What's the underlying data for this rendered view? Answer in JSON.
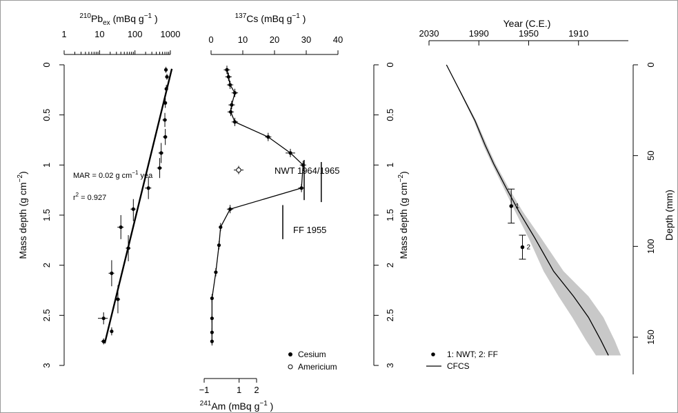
{
  "chart_data": [
    {
      "type": "scatter",
      "panel": "Pb210",
      "title_html": {
        "sup": "210",
        "main": "Pb",
        "sub": "ex",
        "unit": " (mBq  g",
        "unit_sup": "−1",
        "unit_end": " )"
      },
      "xscale": "log",
      "xlim": [
        1,
        1000
      ],
      "x_tick_labels": [
        "1",
        "10",
        "100",
        "1000"
      ],
      "x_tick_values": [
        1,
        10,
        100,
        1000
      ],
      "ylabel": "Mass depth (g cm",
      "ylabel_sup": "−2",
      "ylabel_end": ")",
      "ylim": [
        0,
        3
      ],
      "y_tick_labels": [
        "0",
        "0.5",
        "1",
        "1.5",
        "2",
        "2.5",
        "3"
      ],
      "y_tick_values": [
        0,
        0.5,
        1,
        1.5,
        2,
        2.5,
        3
      ],
      "points": [
        {
          "x": 750,
          "y": 0.05,
          "xerr": [
            700,
            800
          ],
          "yerr": [
            0.02,
            0.08
          ]
        },
        {
          "x": 800,
          "y": 0.12,
          "xerr": [
            740,
            860
          ],
          "yerr": [
            0.09,
            0.15
          ]
        },
        {
          "x": 770,
          "y": 0.24,
          "xerr": [
            700,
            850
          ],
          "yerr": [
            0.2,
            0.28
          ]
        },
        {
          "x": 720,
          "y": 0.38,
          "xerr": [
            650,
            800
          ],
          "yerr": [
            0.33,
            0.43
          ]
        },
        {
          "x": 700,
          "y": 0.55,
          "xerr": [
            600,
            800
          ],
          "yerr": [
            0.48,
            0.62
          ]
        },
        {
          "x": 720,
          "y": 0.72,
          "xerr": [
            620,
            820
          ],
          "yerr": [
            0.64,
            0.8
          ]
        },
        {
          "x": 550,
          "y": 0.88,
          "xerr": [
            460,
            640
          ],
          "yerr": [
            0.78,
            0.98
          ]
        },
        {
          "x": 500,
          "y": 1.03,
          "xerr": [
            420,
            580
          ],
          "yerr": [
            0.93,
            1.13
          ]
        },
        {
          "x": 240,
          "y": 1.23,
          "xerr": [
            190,
            290
          ],
          "yerr": [
            1.12,
            1.34
          ]
        },
        {
          "x": 90,
          "y": 1.44,
          "xerr": [
            75,
            105
          ],
          "yerr": [
            1.34,
            1.56
          ]
        },
        {
          "x": 40,
          "y": 1.62,
          "xerr": [
            32,
            48
          ],
          "yerr": [
            1.5,
            1.74
          ]
        },
        {
          "x": 65,
          "y": 1.83,
          "xerr": [
            55,
            75
          ],
          "yerr": [
            1.7,
            1.96
          ]
        },
        {
          "x": 22,
          "y": 2.08,
          "xerr": [
            18,
            26
          ],
          "yerr": [
            1.95,
            2.21
          ]
        },
        {
          "x": 33,
          "y": 2.34,
          "xerr": [
            28,
            38
          ],
          "yerr": [
            2.2,
            2.48
          ]
        },
        {
          "x": 13,
          "y": 2.53,
          "xerr": [
            9,
            17
          ],
          "yerr": [
            2.47,
            2.59
          ]
        },
        {
          "x": 22,
          "y": 2.66,
          "xerr": [
            20,
            24
          ],
          "yerr": [
            2.62,
            2.7
          ]
        },
        {
          "x": 13,
          "y": 2.76,
          "xerr": [
            11,
            15
          ],
          "yerr": [
            2.73,
            2.79
          ]
        }
      ],
      "fit_line": {
        "x": [
          1100,
          14
        ],
        "y": [
          0.04,
          2.78
        ]
      },
      "annotations": {
        "mar": "MAR = 0.02 g cm",
        "mar_sup": "−1",
        "mar_end": " yea",
        "r2": "r",
        "r2_sup": "2",
        "r2_end": " = 0.927"
      }
    },
    {
      "type": "line",
      "panel": "Cs137",
      "title_html": {
        "sup": "137",
        "main": "Cs",
        "unit": " (mBq  g",
        "unit_sup": "−1",
        "unit_end": " )"
      },
      "xlim": [
        0,
        40
      ],
      "x_tick_labels": [
        "0",
        "10",
        "20",
        "30",
        "40"
      ],
      "x_tick_values": [
        0,
        10,
        20,
        30,
        40
      ],
      "ylim": [
        0,
        3
      ],
      "series": [
        {
          "name": "Cesium",
          "points": [
            {
              "x": 5,
              "y": 0.05,
              "xerr": [
                4,
                6
              ]
            },
            {
              "x": 5.5,
              "y": 0.12,
              "xerr": [
                4.5,
                6.5
              ]
            },
            {
              "x": 6,
              "y": 0.2,
              "xerr": [
                5,
                7
              ]
            },
            {
              "x": 7.5,
              "y": 0.28,
              "xerr": [
                6.5,
                8.5
              ]
            },
            {
              "x": 6.5,
              "y": 0.4,
              "xerr": [
                5.5,
                7.5
              ]
            },
            {
              "x": 6.2,
              "y": 0.47,
              "xerr": [
                5.2,
                7.2
              ]
            },
            {
              "x": 7.5,
              "y": 0.57,
              "xerr": [
                6.5,
                8.5
              ]
            },
            {
              "x": 18,
              "y": 0.72,
              "xerr": [
                17,
                19
              ]
            },
            {
              "x": 25,
              "y": 0.88,
              "xerr": [
                23.5,
                26.5
              ]
            },
            {
              "x": 29,
              "y": 1.0,
              "xerr": [
                28,
                30
              ]
            },
            {
              "x": 28.5,
              "y": 1.23,
              "xerr": [
                27.5,
                29.5
              ]
            },
            {
              "x": 6,
              "y": 1.44,
              "xerr": [
                5,
                7
              ]
            },
            {
              "x": 3,
              "y": 1.62,
              "xerr": [
                2.5,
                3.5
              ]
            },
            {
              "x": 2.5,
              "y": 1.8,
              "xerr": [
                2,
                3
              ]
            },
            {
              "x": 1.5,
              "y": 2.07,
              "xerr": [
                1,
                2
              ]
            },
            {
              "x": 0.3,
              "y": 2.33
            },
            {
              "x": 0.3,
              "y": 2.53
            },
            {
              "x": 0.3,
              "y": 2.67
            },
            {
              "x": 0.3,
              "y": 2.76
            }
          ]
        },
        {
          "name": "Americium",
          "points": [
            {
              "x": 1.2,
              "y": 1.05,
              "xerr": [
                0.7,
                1.7
              ],
              "yerr": [
                0.98,
                1.12
              ]
            }
          ]
        }
      ],
      "am_axis": {
        "xlim": [
          -1,
          2
        ],
        "x_tick_labels": [
          "−1",
          "1",
          "2"
        ],
        "x_tick_values": [
          -1,
          1,
          2
        ],
        "label_sup": "241",
        "label_main": "Am (mBq  g",
        "label_unit_sup": "−1",
        "label_end": " )"
      },
      "am_error_bars": [
        {
          "x": 1.2,
          "y": [
            0.95,
            1.35
          ]
        },
        {
          "x": 2.0,
          "y": [
            0.97,
            1.37
          ]
        },
        {
          "x": 0.2,
          "y": [
            1.4,
            1.74
          ]
        }
      ],
      "annotations": {
        "nwt": "NWT 1964/1965",
        "ff": "FF 1955"
      },
      "legend": {
        "position": "bottom-right",
        "items": [
          "Cesium",
          "Americium"
        ]
      }
    },
    {
      "type": "line",
      "panel": "age-depth",
      "xlabel_top": "Year (C.E.)",
      "xlim": [
        2030,
        1870
      ],
      "x_tick_labels": [
        "2030",
        "1990",
        "1950",
        "1910"
      ],
      "x_tick_values": [
        2030,
        1990,
        1950,
        1910
      ],
      "ylabel_left": "Mass depth (g cm",
      "ylabel_left_sup": "−2",
      "ylabel_left_end": ")",
      "ylim_left": [
        0,
        3
      ],
      "y_tick_labels_left": [
        "0",
        "0.5",
        "1",
        "1.5",
        "2",
        "2.5",
        "3"
      ],
      "ylabel_right": "Depth (mm)",
      "ylim_right": [
        0,
        170.5
      ],
      "y_tick_labels_right": [
        "0",
        "50",
        "100",
        "150"
      ],
      "y_tick_values_right": [
        0,
        50,
        100,
        150
      ],
      "series": [
        {
          "name": "CFCS",
          "x": [
            2016,
            2004,
            1993,
            1985,
            1978,
            1968,
            1958,
            1945,
            1930,
            1914,
            1902,
            1892,
            1886
          ],
          "y": [
            0.0,
            0.29,
            0.56,
            0.8,
            0.99,
            1.23,
            1.46,
            1.73,
            2.06,
            2.31,
            2.52,
            2.75,
            2.9
          ],
          "band_lower": [
            2016,
            2004.5,
            1994,
            1986.5,
            1979.5,
            1970,
            1961,
            1950,
            1938,
            1926,
            1915,
            1904,
            1896
          ],
          "band_upper": [
            2016,
            2003.5,
            1992,
            1983.5,
            1976.5,
            1966,
            1955,
            1940,
            1922,
            1902,
            1890,
            1881,
            1876
          ]
        },
        {
          "name": "1: NWT; 2: FF",
          "points": [
            {
              "label": "1",
              "x": 1964,
              "y": 1.41,
              "yerr": [
                1.24,
                1.58
              ]
            },
            {
              "label": "2",
              "x": 1955,
              "y": 1.82,
              "yerr": [
                1.7,
                1.94
              ]
            }
          ]
        }
      ],
      "legend": {
        "position": "bottom-left",
        "items": [
          "1: NWT; 2: FF",
          "CFCS"
        ]
      }
    }
  ]
}
